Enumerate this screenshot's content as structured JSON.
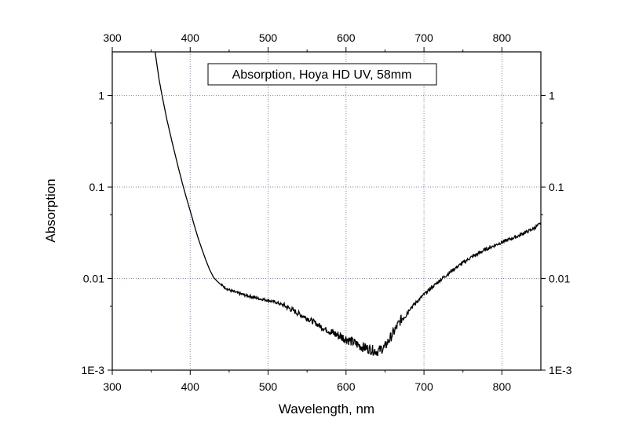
{
  "chart_data": {
    "type": "line",
    "title": "",
    "legend": "Absorption, Hoya HD UV, 58mm",
    "xlabel": "Wavelength, nm",
    "ylabel": "Absorption",
    "xlim": [
      300,
      850
    ],
    "ylim": [
      0.001,
      3
    ],
    "y_scale": "log",
    "x_ticks": [
      300,
      400,
      500,
      600,
      700,
      800
    ],
    "y_ticks": [
      0.001,
      0.01,
      0.1,
      1
    ],
    "y_tick_labels": [
      "1E-3",
      "0.01",
      "0.1",
      "1"
    ],
    "grid": true,
    "legend_position": "top-center",
    "line_color": "#000000",
    "grid_color": "#8080c8",
    "series": [
      {
        "x": [
          355,
          360,
          365,
          370,
          375,
          380,
          385,
          390,
          395,
          400,
          405,
          410,
          415,
          420,
          425,
          430,
          435,
          440,
          450,
          460,
          470,
          480,
          490,
          500,
          510,
          520,
          530,
          540,
          550,
          560,
          570,
          580,
          590,
          600,
          610,
          620,
          630,
          640,
          650,
          660,
          670,
          680,
          690,
          700,
          720,
          740,
          760,
          780,
          800,
          820,
          840,
          850
        ],
        "y": [
          3.0,
          1.5,
          0.9,
          0.55,
          0.36,
          0.24,
          0.16,
          0.11,
          0.077,
          0.055,
          0.039,
          0.028,
          0.021,
          0.016,
          0.0125,
          0.0103,
          0.0093,
          0.0085,
          0.0075,
          0.007,
          0.0066,
          0.0063,
          0.006,
          0.0058,
          0.0055,
          0.0051,
          0.0046,
          0.0041,
          0.0037,
          0.0033,
          0.0029,
          0.0026,
          0.0024,
          0.0022,
          0.002,
          0.0018,
          0.0017,
          0.0016,
          0.0018,
          0.0025,
          0.0035,
          0.0045,
          0.0055,
          0.0067,
          0.0095,
          0.013,
          0.017,
          0.021,
          0.025,
          0.029,
          0.035,
          0.04
        ]
      }
    ]
  }
}
